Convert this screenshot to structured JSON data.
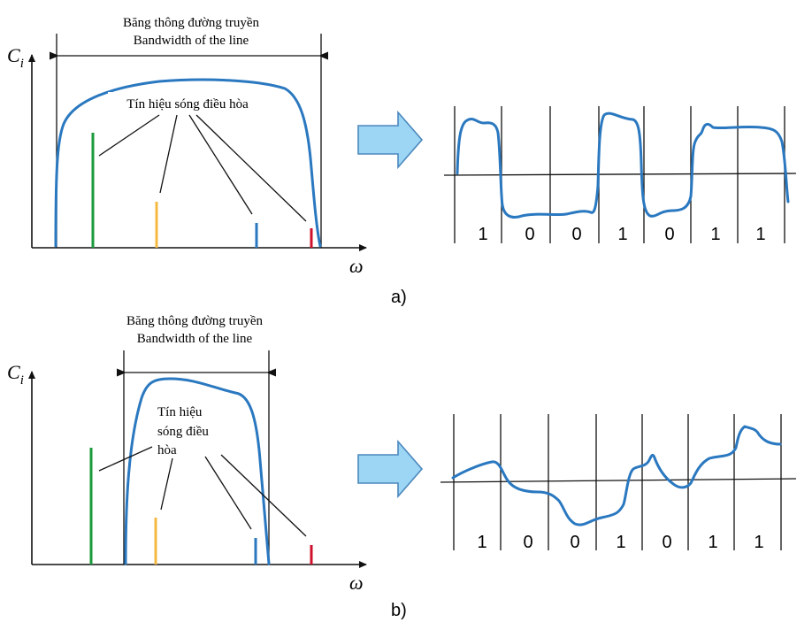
{
  "colors": {
    "curve": "#2a78c0",
    "axis": "#111111",
    "harmonic_green": "#1b9a3b",
    "harmonic_orange": "#f5b942",
    "harmonic_blue": "#2a78c0",
    "harmonic_red": "#d0112b",
    "arrow_fill": "#9dd6f4",
    "arrow_stroke": "#4b87bd"
  },
  "panel_a": {
    "bandwidth_vi": "Băng thông đường truyền",
    "bandwidth_en": "Bandwidth of the line",
    "y_axis": "C",
    "y_sub": "i",
    "x_axis": "ω",
    "harmonics_label_lines": [
      "Tín hiệu sóng điều hòa"
    ],
    "bits": [
      "1",
      "0",
      "0",
      "1",
      "0",
      "1",
      "1"
    ],
    "caption": "a)"
  },
  "panel_b": {
    "bandwidth_vi": "Băng thông đường truyền",
    "bandwidth_en": "Bandwidth of the line",
    "y_axis": "C",
    "y_sub": "i",
    "x_axis": "ω",
    "harmonics_label_lines": [
      "Tín hiệu",
      "sóng điều",
      "hòa"
    ],
    "bits": [
      "1",
      "0",
      "0",
      "1",
      "0",
      "1",
      "1"
    ],
    "caption": "b)"
  },
  "icons": [
    "arrow-right-icon"
  ]
}
